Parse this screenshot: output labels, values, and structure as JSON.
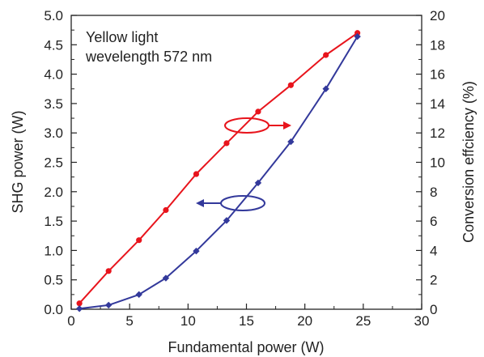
{
  "chart_data": {
    "type": "line",
    "x": [
      0.7,
      3.2,
      5.8,
      8.1,
      10.7,
      13.3,
      16.0,
      18.8,
      21.8,
      24.5
    ],
    "series": [
      {
        "axis": "right",
        "color": "#e8141c",
        "values": [
          0.4,
          2.6,
          4.7,
          6.75,
          9.2,
          11.3,
          13.45,
          15.25,
          17.3,
          18.8
        ]
      },
      {
        "axis": "left",
        "color": "#33399b",
        "values": [
          0.01,
          0.07,
          0.25,
          0.53,
          0.99,
          1.51,
          2.15,
          2.85,
          3.75,
          4.64
        ]
      }
    ],
    "xlabel": "Fundamental power (W)",
    "ylabel": "SHG power (W)",
    "y2label": "Conversion effciency (%)",
    "xlim": [
      0,
      30
    ],
    "ylim": [
      0,
      5
    ],
    "y2lim": [
      0,
      20
    ],
    "xticks": [
      "0",
      "5",
      "10",
      "15",
      "20",
      "25",
      "30"
    ],
    "yticks": [
      "0.0",
      "0.5",
      "1.0",
      "1.5",
      "2.0",
      "2.5",
      "3.0",
      "3.5",
      "4.0",
      "4.5",
      "5.0"
    ],
    "y2ticks": [
      "0",
      "2",
      "4",
      "6",
      "8",
      "10",
      "12",
      "14",
      "16",
      "18",
      "20"
    ],
    "annotation": [
      "Yellow light",
      "wevelength 572 nm"
    ],
    "grid": false
  }
}
